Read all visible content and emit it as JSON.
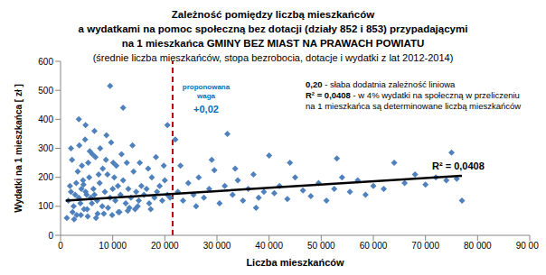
{
  "chart_data": {
    "type": "scatter",
    "title": [
      "Zależność pomiędzy liczbą mieszkańców",
      "a wydatkami na pomoc społeczną bez dotacji (działy 852 i 853) przypadającymi",
      "na 1 mieszkańca GMINY BEZ MIAST NA PRAWACH POWIATU"
    ],
    "subtitle": "(średnie liczba mieszkańców, stopa bezrobocia, dotacje  i wydatki z lat 2012-2014)",
    "x_label": "Liczba mieszkańców",
    "y_label": "Wydatki  na 1 mieszkańca [ zł ]",
    "xlim": [
      0,
      90000
    ],
    "xticks": [
      0,
      {
        "value": 10000,
        "label": "10 000"
      },
      {
        "value": 20000,
        "label": "20 000"
      },
      {
        "value": 30000,
        "label": "30 000"
      },
      {
        "value": 40000,
        "label": "40 000"
      },
      {
        "value": 50000,
        "label": "50 000"
      },
      {
        "value": 60000,
        "label": "60 000"
      },
      {
        "value": 70000,
        "label": "70 000"
      },
      {
        "value": 80000,
        "label": "80 000"
      },
      {
        "value": 90000,
        "label": "90 000"
      }
    ],
    "ylim": [
      0,
      600
    ],
    "yticks": [
      0,
      100,
      200,
      300,
      400,
      500,
      600
    ],
    "grid": false,
    "series": [
      {
        "type": "scatter",
        "color": "#4f81bd",
        "marker": "diamond",
        "x": [
          1500,
          2000,
          2500,
          3000,
          3500,
          4000,
          4500,
          5000,
          5500,
          6000,
          1800,
          2300,
          2800,
          3300,
          3800,
          4300,
          4800,
          5300,
          5800,
          6300,
          6500,
          7000,
          7500,
          8000,
          8500,
          9000,
          9500,
          10000,
          10500,
          11000,
          2200,
          3100,
          4100,
          5100,
          6100,
          7100,
          8100,
          9100,
          10100,
          11100,
          11500,
          12000,
          12500,
          13000,
          13500,
          14000,
          14500,
          15000,
          15500,
          16000,
          16500,
          17000,
          17500,
          18000,
          18500,
          19000,
          19500,
          20000,
          20500,
          21000,
          3600,
          4700,
          5600,
          6700,
          7600,
          8700,
          9700,
          10700,
          11700,
          12700,
          1200,
          2600,
          3900,
          5200,
          6800,
          8300,
          9900,
          11300,
          12900,
          14300,
          3500,
          4800,
          9500,
          12000,
          2000,
          6500,
          8800,
          20500,
          22000,
          13800,
          15200,
          16800,
          18300,
          19800,
          14800,
          17300,
          13200,
          10300,
          7300,
          4400,
          22500,
          23500,
          24500,
          25500,
          26500,
          27500,
          28500,
          29500,
          30500,
          31500,
          32000,
          33000,
          34000,
          35000,
          36000,
          37000,
          38000,
          39000,
          40000,
          41000,
          42000,
          43500,
          45000,
          46500,
          48000,
          49500,
          51000,
          52500,
          53000,
          54000,
          55500,
          57000,
          58500,
          60000,
          62000,
          64000,
          66000,
          68000,
          70000,
          72000,
          74000,
          75000,
          76000,
          77000,
          23000,
          26000,
          29000,
          33500,
          37500,
          44000
        ],
        "values": [
          120,
          150,
          100,
          180,
          130,
          160,
          90,
          140,
          200,
          110,
          170,
          80,
          140,
          220,
          110,
          190,
          150,
          250,
          130,
          160,
          140,
          120,
          180,
          100,
          150,
          210,
          130,
          160,
          120,
          170,
          260,
          70,
          240,
          90,
          280,
          75,
          230,
          95,
          250,
          80,
          140,
          190,
          110,
          160,
          130,
          220,
          150,
          120,
          170,
          140,
          160,
          110,
          200,
          130,
          150,
          170,
          120,
          190,
          140,
          130,
          310,
          330,
          290,
          270,
          300,
          260,
          320,
          240,
          280,
          250,
          60,
          55,
          70,
          65,
          60,
          75,
          70,
          80,
          85,
          90,
          400,
          380,
          515,
          440,
          300,
          360,
          345,
          380,
          330,
          310,
          250,
          230,
          270,
          240,
          100,
          90,
          95,
          200,
          210,
          175,
          150,
          120,
          180,
          140,
          200,
          130,
          160,
          225,
          110,
          170,
          350,
          140,
          190,
          120,
          160,
          210,
          130,
          150,
          275,
          145,
          170,
          125,
          200,
          155,
          135,
          180,
          120,
          160,
          265,
          200,
          150,
          190,
          140,
          170,
          160,
          250,
          180,
          210,
          175,
          200,
          190,
          285,
          195,
          120,
          240,
          100,
          260,
          230,
          95,
          250
        ]
      },
      {
        "type": "line",
        "color": "#000000",
        "x": [
          1000,
          77000
        ],
        "values": [
          120,
          205
        ]
      }
    ],
    "reference_line": {
      "x": 21500,
      "color": "#c00000",
      "line_style": "dashed"
    },
    "annotations": {
      "weight_label": [
        "proponowana",
        "waga"
      ],
      "weight_value": "+0,02",
      "correlation": [
        "0,20",
        " - słaba dodatnia zależność liniowa"
      ],
      "determination": [
        "R² = 0,0408",
        " - w 4% wydatki na społeczną w przeliczeniu",
        "na 1 mieszkańca są determinowane liczbą mieszkańców"
      ],
      "trend_label": "R² = 0,0408"
    }
  }
}
